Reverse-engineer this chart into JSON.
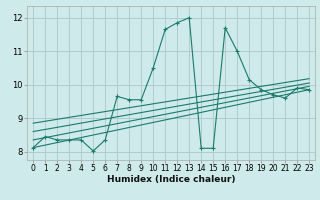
{
  "xlabel": "Humidex (Indice chaleur)",
  "xlim": [
    -0.5,
    23.5
  ],
  "ylim": [
    7.75,
    12.35
  ],
  "xticks": [
    0,
    1,
    2,
    3,
    4,
    5,
    6,
    7,
    8,
    9,
    10,
    11,
    12,
    13,
    14,
    15,
    16,
    17,
    18,
    19,
    20,
    21,
    22,
    23
  ],
  "yticks": [
    8,
    9,
    10,
    11,
    12
  ],
  "bg_color": "#ceeaea",
  "grid_color": "#b0cccc",
  "line_color": "#1a7a6e",
  "main_x": [
    0,
    1,
    2,
    3,
    4,
    5,
    6,
    7,
    8,
    9,
    10,
    11,
    12,
    13,
    14,
    15,
    16,
    17,
    18,
    19,
    20,
    21,
    22,
    23
  ],
  "main_y": [
    8.12,
    8.45,
    8.35,
    8.35,
    8.35,
    8.02,
    8.35,
    9.65,
    9.55,
    9.55,
    10.5,
    11.65,
    11.85,
    12.0,
    8.1,
    8.1,
    11.7,
    11.0,
    10.15,
    9.85,
    9.7,
    9.6,
    9.9,
    9.85
  ],
  "trend_lines": [
    {
      "x": [
        0,
        23
      ],
      "y": [
        8.12,
        9.85
      ]
    },
    {
      "x": [
        0,
        23
      ],
      "y": [
        8.35,
        9.95
      ]
    },
    {
      "x": [
        0,
        23
      ],
      "y": [
        8.6,
        10.05
      ]
    },
    {
      "x": [
        0,
        23
      ],
      "y": [
        8.85,
        10.18
      ]
    }
  ]
}
